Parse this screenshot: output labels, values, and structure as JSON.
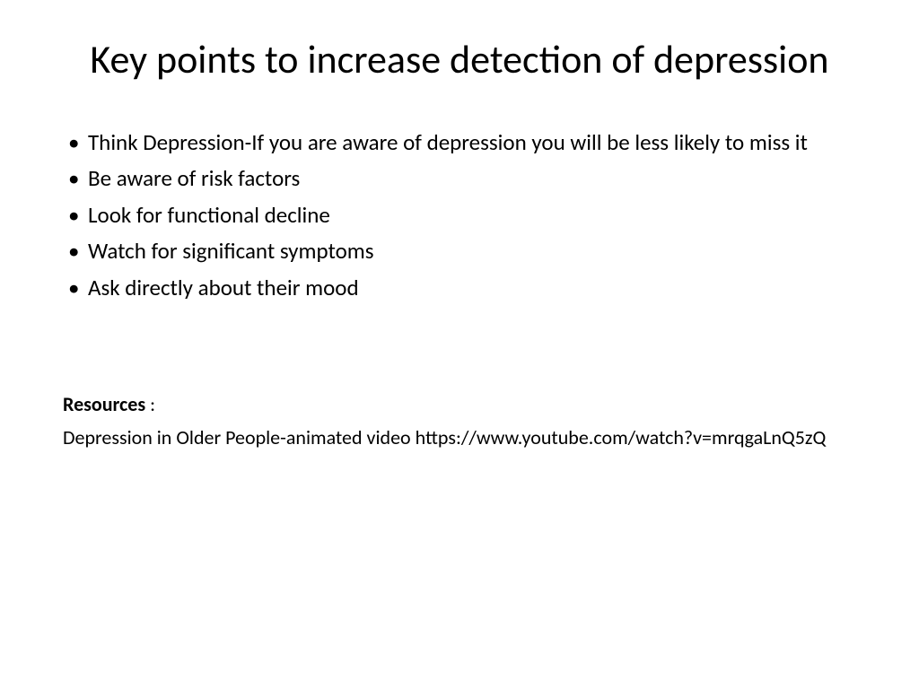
{
  "slide": {
    "title": "Key points to increase detection of depression",
    "bullets": [
      "Think Depression-If you are aware of depression you will be less likely to miss it",
      "Be aware of risk factors",
      "Look for functional decline",
      "Watch for significant symptoms",
      "Ask directly about  their mood"
    ],
    "resources": {
      "label": "Resources",
      "colon": " :",
      "text": "Depression in Older People-animated video https://www.youtube.com/watch?v=mrqgaLnQ5zQ"
    }
  },
  "styling": {
    "background_color": "#ffffff",
    "text_color": "#000000",
    "title_fontsize": 44,
    "body_fontsize": 25,
    "resources_fontsize": 22,
    "font_family": "Calibri"
  }
}
